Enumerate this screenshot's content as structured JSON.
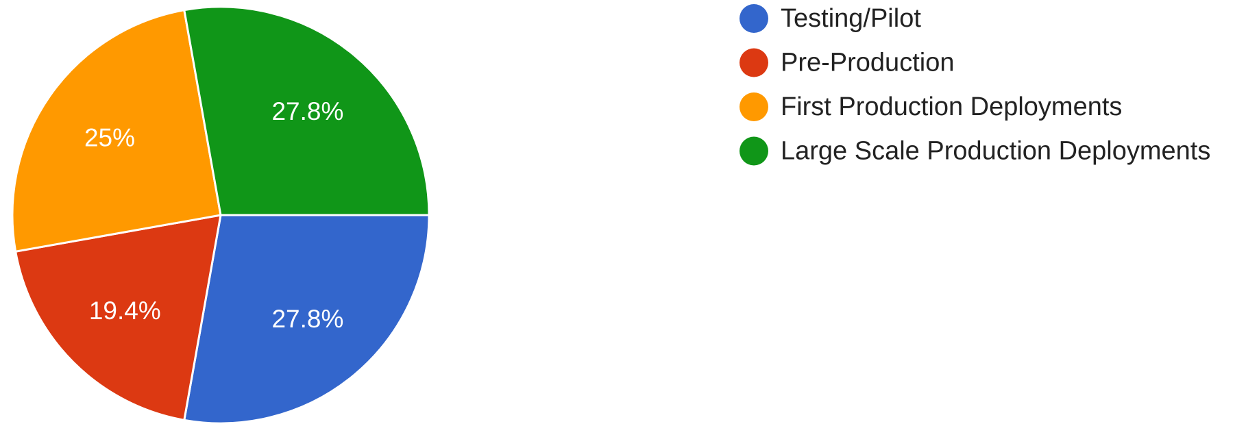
{
  "chart_data": {
    "type": "pie",
    "categories": [
      "Testing/Pilot",
      "Pre-Production",
      "First Production Deployments",
      "Large Scale Production Deployments"
    ],
    "values": [
      27.8,
      19.4,
      25,
      27.8
    ],
    "value_labels": [
      "27.8%",
      "19.4%",
      "25%",
      "27.8%"
    ],
    "colors": [
      "#3366cc",
      "#dc3912",
      "#ff9900",
      "#109618"
    ],
    "legend": "right"
  }
}
